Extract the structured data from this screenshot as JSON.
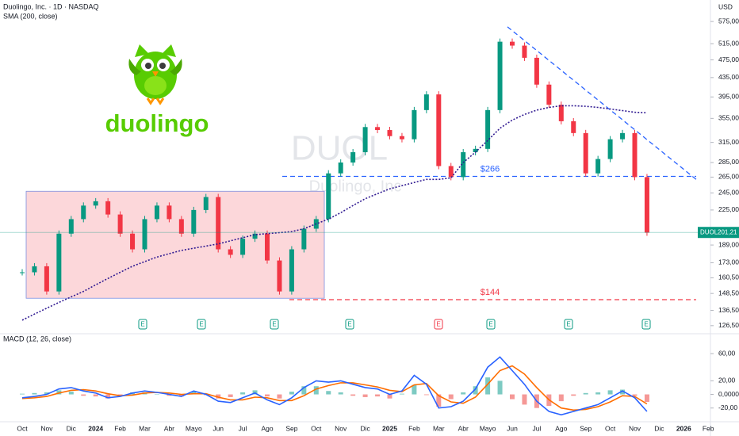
{
  "chart_data": {
    "type": "candlestick",
    "title": "Duolingo, Inc. · 1D · NASDAQ",
    "indicator": "SMA (200, close)",
    "currency": "USD",
    "log_scale": true,
    "watermark": {
      "symbol": "DUOL",
      "name": "Duolingo, Inc"
    },
    "logo": "duolingo",
    "categories": [
      "Oct",
      null,
      "Nov",
      null,
      "Dic",
      null,
      "2024",
      null,
      "Feb",
      null,
      "Mar",
      null,
      "Abr",
      null,
      "Mayo",
      null,
      "Jun",
      null,
      "Jul",
      null,
      "Ago",
      null,
      "Sep",
      null,
      "Oct",
      null,
      "Nov",
      null,
      "Dic",
      null,
      "2025",
      null,
      "Feb",
      null,
      "Mar",
      null,
      "Abr",
      null,
      "Mayo",
      null,
      "Jun",
      null,
      "Jul",
      null,
      "Ago",
      null,
      "Sep",
      null,
      "Oct",
      null,
      "Nov",
      null,
      "Dic",
      null,
      "2026",
      null,
      "Feb"
    ],
    "series": [
      {
        "name": "DUOL",
        "up_color": "#089981",
        "down_color": "#f23645",
        "values": [
          165,
          170,
          150,
          200,
          215,
          230,
          235,
          220,
          200,
          185,
          215,
          230,
          215,
          200,
          225,
          240,
          185,
          180,
          195,
          200,
          175,
          150,
          185,
          205,
          215,
          270,
          285,
          300,
          340,
          335,
          325,
          320,
          370,
          400,
          280,
          265,
          300,
          305,
          370,
          520,
          510,
          480,
          420,
          380,
          350,
          330,
          270,
          290,
          320,
          330,
          265,
          201,
          null,
          null,
          null,
          null,
          null
        ]
      },
      {
        "name": "SMA",
        "color": "#311b92",
        "values": [
          130,
          134,
          138,
          142,
          146,
          150,
          155,
          160,
          165,
          170,
          174,
          178,
          181,
          184,
          186,
          188,
          190,
          193,
          196,
          199,
          200,
          201,
          202,
          205,
          210,
          215,
          222,
          230,
          238,
          244,
          250,
          254,
          258,
          262,
          262,
          264,
          285,
          300,
          318,
          338,
          352,
          362,
          370,
          375,
          378,
          378,
          377,
          375,
          372,
          369,
          366,
          365,
          null,
          null,
          null,
          null,
          null
        ]
      }
    ],
    "ylim": [
      122,
      640
    ],
    "yticks": [
      {
        "value": 575,
        "label": "575,00"
      },
      {
        "value": 515,
        "label": "515,00"
      },
      {
        "value": 475,
        "label": "475,00"
      },
      {
        "value": 435,
        "label": "435,00"
      },
      {
        "value": 395,
        "label": "395,00"
      },
      {
        "value": 355,
        "label": "355,00"
      },
      {
        "value": 315,
        "label": "315,00"
      },
      {
        "value": 285,
        "label": "285,00"
      },
      {
        "value": 265,
        "label": "265,00"
      },
      {
        "value": 245,
        "label": "245,00"
      },
      {
        "value": 225,
        "label": "225,00"
      },
      {
        "value": 189,
        "label": "189,00"
      },
      {
        "value": 173,
        "label": "173,00"
      },
      {
        "value": 160.5,
        "label": "160,50"
      },
      {
        "value": 148.5,
        "label": "148,50"
      },
      {
        "value": 136.5,
        "label": "136,50"
      },
      {
        "value": 126.5,
        "label": "126,50"
      }
    ],
    "levels": [
      {
        "label": "$266",
        "value": 266,
        "color": "#2962ff"
      },
      {
        "label": "$144",
        "value": 144,
        "color": "#f23645"
      }
    ],
    "range_box": {
      "top": 247,
      "bottom": 145,
      "color": "#f23645"
    },
    "trendline": {
      "start": 560,
      "end": 262,
      "color": "#2962ff"
    },
    "last_price": {
      "symbol": "DUOL",
      "label": "201,21",
      "value": 201.21,
      "color": "#089981"
    },
    "earnings": [
      {
        "label": "E",
        "color": "#089981"
      },
      {
        "label": "E",
        "color": "#089981"
      },
      {
        "label": "E",
        "color": "#089981"
      },
      {
        "label": "E",
        "color": "#089981"
      },
      {
        "label": "E",
        "color": "#f23645"
      },
      {
        "label": "E",
        "color": "#089981"
      },
      {
        "label": "E",
        "color": "#089981"
      },
      {
        "label": "E",
        "color": "#089981"
      }
    ],
    "macd": {
      "title": "MACD (12, 26, close)",
      "ylim": [
        -39,
        88
      ],
      "yticks": [
        {
          "value": 60,
          "label": "60,00"
        },
        {
          "value": 20,
          "label": "20,00"
        },
        {
          "value": 0,
          "label": "0,0000"
        },
        {
          "value": -20,
          "label": "-20,00"
        }
      ],
      "series": [
        {
          "name": "MACD",
          "color": "#2962ff",
          "values": [
            -5,
            -3,
            0,
            8,
            10,
            5,
            2,
            -5,
            -3,
            2,
            5,
            3,
            0,
            -3,
            5,
            0,
            -10,
            -12,
            -5,
            2,
            -8,
            -15,
            -5,
            10,
            20,
            18,
            20,
            15,
            10,
            8,
            0,
            5,
            28,
            15,
            -20,
            -18,
            -10,
            8,
            40,
            55,
            35,
            15,
            -10,
            -25,
            -30,
            -25,
            -20,
            -15,
            -5,
            5,
            -5,
            -25,
            null,
            null,
            null,
            null,
            null
          ]
        },
        {
          "name": "Signal",
          "color": "#ff6d00",
          "values": [
            -6,
            -5,
            -3,
            2,
            6,
            7,
            5,
            1,
            -2,
            -1,
            2,
            3,
            2,
            0,
            1,
            1,
            -4,
            -8,
            -8,
            -4,
            -5,
            -9,
            -9,
            -2,
            8,
            13,
            17,
            17,
            14,
            11,
            6,
            4,
            14,
            16,
            -2,
            -11,
            -13,
            -4,
            15,
            35,
            42,
            30,
            10,
            -8,
            -20,
            -23,
            -22,
            -18,
            -11,
            -2,
            -3,
            -14,
            null,
            null,
            null,
            null,
            null
          ]
        },
        {
          "name": "Histogram",
          "up_color": "#26a69a",
          "down_color": "#ef5350",
          "values": [
            1,
            2,
            3,
            6,
            4,
            -2,
            -3,
            -6,
            -1,
            3,
            3,
            0,
            -2,
            -3,
            4,
            -1,
            -6,
            -4,
            3,
            6,
            -3,
            -6,
            4,
            12,
            12,
            5,
            3,
            -2,
            -4,
            -3,
            -6,
            1,
            14,
            -1,
            -18,
            -7,
            3,
            12,
            25,
            20,
            -7,
            -15,
            -20,
            -17,
            -10,
            -2,
            2,
            3,
            6,
            7,
            -2,
            -11,
            null,
            null,
            null,
            null,
            null
          ]
        }
      ]
    }
  }
}
